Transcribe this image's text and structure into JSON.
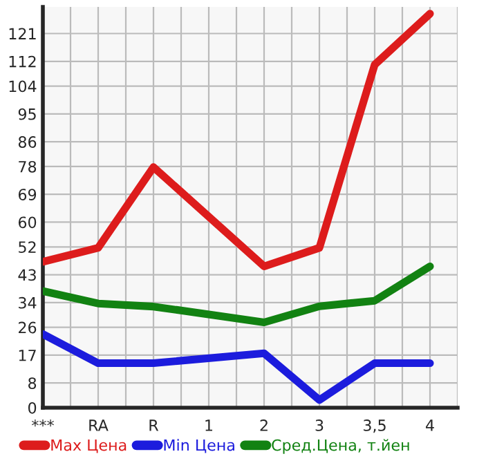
{
  "chart_data": {
    "type": "line",
    "categories": [
      "***",
      "RA",
      "R",
      "1",
      "2",
      "3",
      "3,5",
      "4"
    ],
    "series": [
      {
        "name": "Max Цена",
        "color": "#dd1c1c",
        "values": [
          47.2,
          51.7,
          77.8,
          null,
          45.7,
          51.7,
          110.9,
          127.4
        ]
      },
      {
        "name": "Min Цена",
        "color": "#1c1cdd",
        "values": [
          23.8,
          14.4,
          14.4,
          null,
          17.6,
          2.5,
          14.4,
          14.4
        ]
      },
      {
        "name": "Сред.Цена, т.йен",
        "color": "#128212",
        "values": [
          37.7,
          33.7,
          32.7,
          null,
          27.6,
          32.8,
          34.6,
          45.7
        ]
      }
    ],
    "ylim": [
      0,
      129.6
    ],
    "yticks": [
      0,
      8,
      17,
      26,
      34,
      43,
      52,
      60,
      69,
      78,
      86,
      95,
      104,
      112,
      121
    ],
    "grid": true,
    "legend": "bottom",
    "marker": "none",
    "line_style": "solid"
  }
}
